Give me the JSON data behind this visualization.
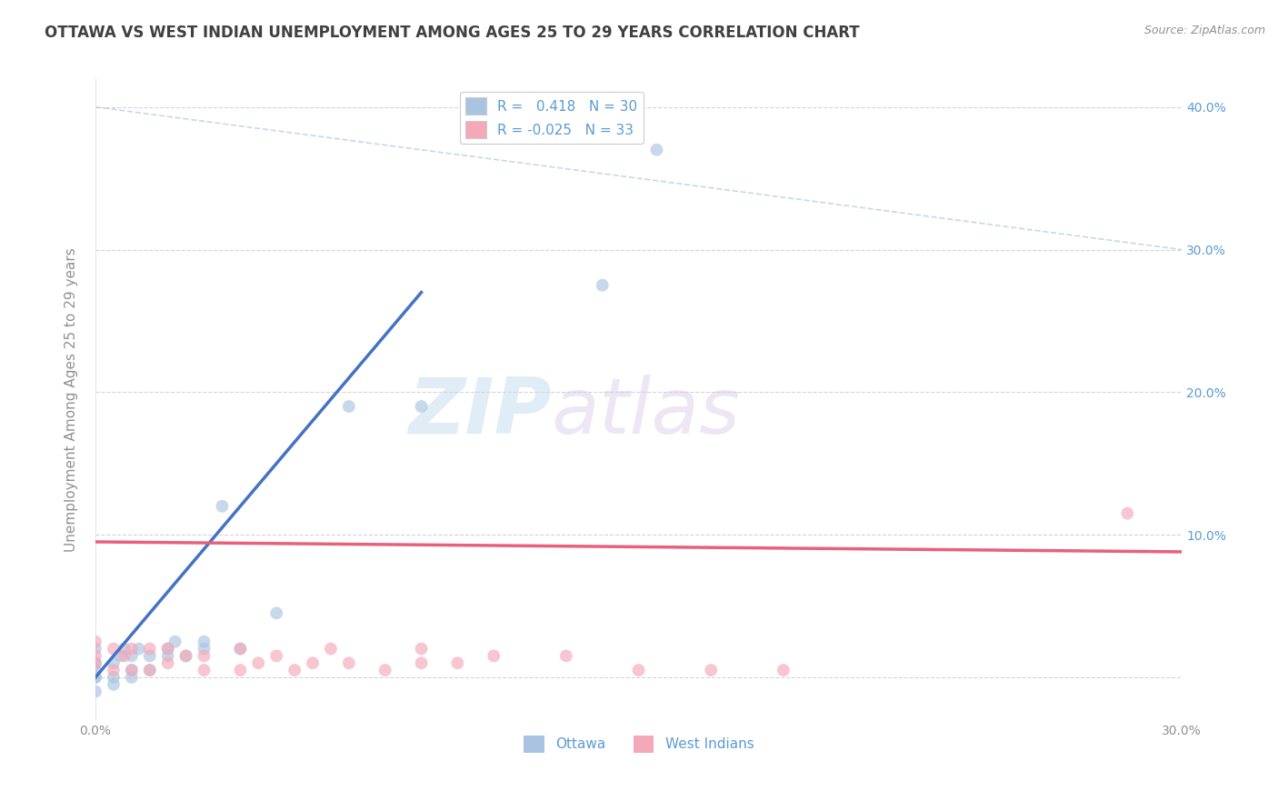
{
  "title": "OTTAWA VS WEST INDIAN UNEMPLOYMENT AMONG AGES 25 TO 29 YEARS CORRELATION CHART",
  "source": "Source: ZipAtlas.com",
  "ylabel": "Unemployment Among Ages 25 to 29 years",
  "xlim": [
    0,
    0.3
  ],
  "ylim": [
    -0.03,
    0.42
  ],
  "ytick_positions": [
    0.0,
    0.1,
    0.2,
    0.3,
    0.4
  ],
  "ytick_labels": [
    "",
    "10.0%",
    "20.0%",
    "30.0%",
    "40.0%"
  ],
  "xtick_positions": [
    0.0,
    0.3
  ],
  "xtick_labels": [
    "0.0%",
    "30.0%"
  ],
  "R_ottawa": 0.418,
  "N_ottawa": 30,
  "R_west_indian": -0.025,
  "N_west_indian": 33,
  "ottawa_color": "#a8c4e0",
  "west_indian_color": "#f4a8b8",
  "ottawa_line_color": "#4472c4",
  "west_indian_line_color": "#e8607a",
  "watermark_zip": "ZIP",
  "watermark_atlas": "atlas",
  "title_color": "#404040",
  "source_color": "#909090",
  "ottawa_x": [
    0.0,
    0.0,
    0.0,
    0.0,
    0.0,
    0.0,
    0.005,
    0.005,
    0.005,
    0.007,
    0.008,
    0.01,
    0.01,
    0.01,
    0.012,
    0.015,
    0.015,
    0.02,
    0.02,
    0.022,
    0.025,
    0.03,
    0.03,
    0.035,
    0.04,
    0.05,
    0.07,
    0.09,
    0.14,
    0.155
  ],
  "ottawa_y": [
    -0.01,
    0.0,
    0.0,
    0.005,
    0.01,
    0.02,
    -0.005,
    0.0,
    0.01,
    0.015,
    0.02,
    0.0,
    0.005,
    0.015,
    0.02,
    0.005,
    0.015,
    0.015,
    0.02,
    0.025,
    0.015,
    0.02,
    0.025,
    0.12,
    0.02,
    0.045,
    0.19,
    0.19,
    0.275,
    0.37
  ],
  "west_indian_x": [
    0.0,
    0.0,
    0.0,
    0.005,
    0.005,
    0.008,
    0.01,
    0.01,
    0.015,
    0.015,
    0.02,
    0.02,
    0.025,
    0.03,
    0.03,
    0.04,
    0.04,
    0.045,
    0.05,
    0.055,
    0.06,
    0.065,
    0.07,
    0.08,
    0.09,
    0.09,
    0.1,
    0.11,
    0.13,
    0.15,
    0.17,
    0.19,
    0.285
  ],
  "west_indian_y": [
    0.01,
    0.015,
    0.025,
    0.005,
    0.02,
    0.015,
    0.005,
    0.02,
    0.005,
    0.02,
    0.01,
    0.02,
    0.015,
    0.005,
    0.015,
    0.005,
    0.02,
    0.01,
    0.015,
    0.005,
    0.01,
    0.02,
    0.01,
    0.005,
    0.01,
    0.02,
    0.01,
    0.015,
    0.015,
    0.005,
    0.005,
    0.005,
    0.115
  ],
  "background_color": "#ffffff",
  "grid_color": "#d0d0d0",
  "title_fontsize": 12,
  "label_fontsize": 11,
  "tick_fontsize": 10,
  "legend_fontsize": 11,
  "marker_size": 100,
  "marker_alpha": 0.65,
  "ottawa_trend_x": [
    0.0,
    0.09
  ],
  "ottawa_trend_y": [
    0.0,
    0.27
  ],
  "west_indian_trend_x": [
    0.0,
    0.3
  ],
  "west_indian_trend_y": [
    0.095,
    0.088
  ]
}
